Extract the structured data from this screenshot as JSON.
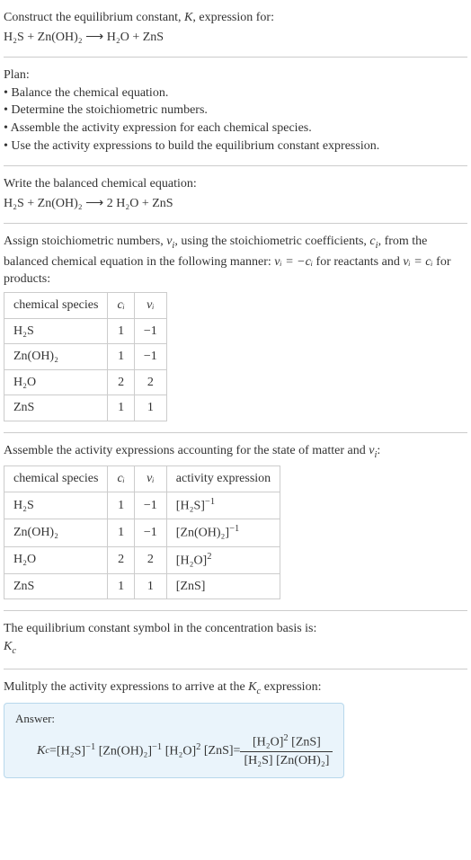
{
  "header": {
    "line1_pre": "Construct the equilibrium constant, ",
    "line1_k": "K",
    "line1_post": ", expression for:",
    "equation": "H₂S + Zn(OH)₂  ⟶  H₂O + ZnS"
  },
  "plan": {
    "title": "Plan:",
    "items": [
      "Balance the chemical equation.",
      "Determine the stoichiometric numbers.",
      "Assemble the activity expression for each chemical species.",
      "Use the activity expressions to build the equilibrium constant expression."
    ]
  },
  "balanced": {
    "title": "Write the balanced chemical equation:",
    "equation": "H₂S + Zn(OH)₂  ⟶  2 H₂O + ZnS"
  },
  "stoich": {
    "text_pre": "Assign stoichiometric numbers, ",
    "nu": "ν",
    "sub_i": "i",
    "text_mid1": ", using the stoichiometric coefficients, ",
    "c": "c",
    "text_mid2": ", from the balanced chemical equation in the following manner: ",
    "rel1": "νᵢ = −cᵢ",
    "text_mid3": " for reactants and ",
    "rel2": "νᵢ = cᵢ",
    "text_end": " for products:",
    "headers": [
      "chemical species",
      "cᵢ",
      "νᵢ"
    ],
    "rows": [
      [
        "H₂S",
        "1",
        "−1"
      ],
      [
        "Zn(OH)₂",
        "1",
        "−1"
      ],
      [
        "H₂O",
        "2",
        "2"
      ],
      [
        "ZnS",
        "1",
        "1"
      ]
    ]
  },
  "activity": {
    "text_pre": "Assemble the activity expressions accounting for the state of matter and ",
    "nu": "ν",
    "sub_i": "i",
    "text_post": ":",
    "headers": [
      "chemical species",
      "cᵢ",
      "νᵢ",
      "activity expression"
    ],
    "rows": [
      {
        "sp": "H₂S",
        "c": "1",
        "v": "−1",
        "expr_base": "[H₂S]",
        "expr_sup": "−1"
      },
      {
        "sp": "Zn(OH)₂",
        "c": "1",
        "v": "−1",
        "expr_base": "[Zn(OH)₂]",
        "expr_sup": "−1"
      },
      {
        "sp": "H₂O",
        "c": "2",
        "v": "2",
        "expr_base": "[H₂O]",
        "expr_sup": "2"
      },
      {
        "sp": "ZnS",
        "c": "1",
        "v": "1",
        "expr_base": "[ZnS]",
        "expr_sup": ""
      }
    ]
  },
  "symbol": {
    "text": "The equilibrium constant symbol in the concentration basis is:",
    "kc_k": "K",
    "kc_sub": "c"
  },
  "multiply": {
    "text_pre": "Mulitply the activity expressions to arrive at the ",
    "kc_k": "K",
    "kc_sub": "c",
    "text_post": " expression:"
  },
  "answer": {
    "label": "Answer:",
    "lhs_k": "K",
    "lhs_sub": "c",
    "eq": " = ",
    "t1_base": "[H₂S]",
    "t1_sup": "−1",
    "t2_base": "[Zn(OH)₂]",
    "t2_sup": "−1",
    "t3_base": "[H₂O]",
    "t3_sup": "2",
    "t4_base": "[ZnS]",
    "eq2": " = ",
    "num1_base": "[H₂O]",
    "num1_sup": "2",
    "num2_base": "[ZnS]",
    "den1_base": "[H₂S]",
    "den2_base": "[Zn(OH)₂]"
  },
  "colors": {
    "text": "#333333",
    "border": "#cccccc",
    "answer_bg": "#eaf4fb",
    "answer_border": "#b8d8ec"
  }
}
